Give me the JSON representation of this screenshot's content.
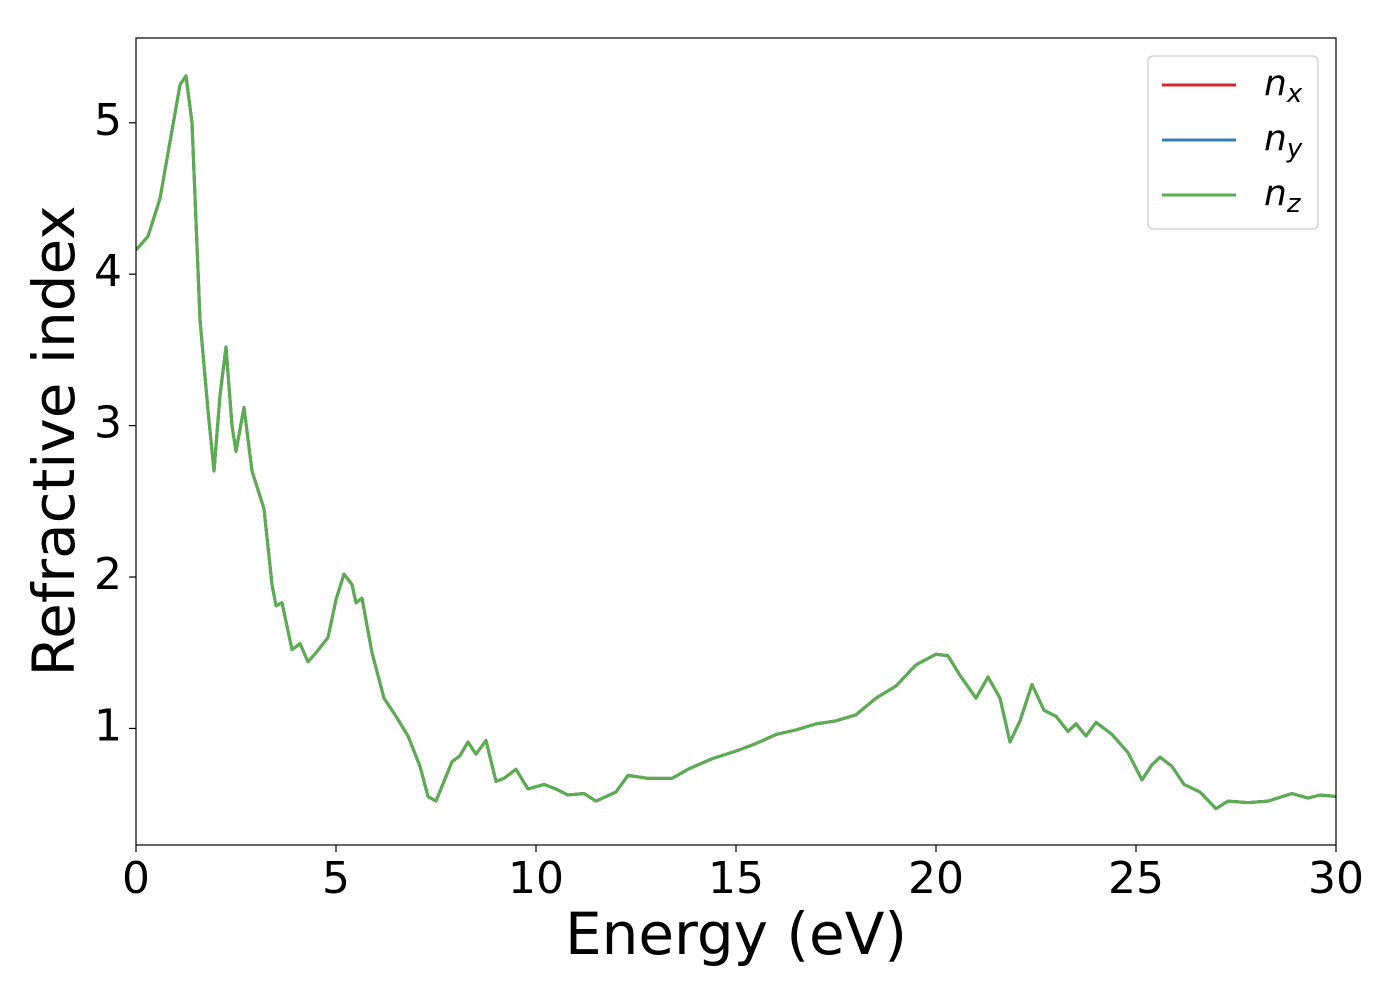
{
  "chart_data": {
    "type": "line",
    "xlabel": "Energy (eV)",
    "ylabel": "Refractive index",
    "x": [
      0,
      0.3,
      0.6,
      0.9,
      1.1,
      1.25,
      1.4,
      1.6,
      1.8,
      1.95,
      2.1,
      2.25,
      2.4,
      2.5,
      2.7,
      2.9,
      3.2,
      3.4,
      3.5,
      3.65,
      3.9,
      4.1,
      4.3,
      4.5,
      4.8,
      5.0,
      5.2,
      5.4,
      5.5,
      5.65,
      5.9,
      6.2,
      6.5,
      6.8,
      7.1,
      7.3,
      7.5,
      7.7,
      7.9,
      8.1,
      8.3,
      8.5,
      8.75,
      9.0,
      9.2,
      9.5,
      9.8,
      10.2,
      10.5,
      10.8,
      11.2,
      11.5,
      12.0,
      12.3,
      12.8,
      13.4,
      13.8,
      14.4,
      15.0,
      15.5,
      16.0,
      16.5,
      17.0,
      17.5,
      18.0,
      18.5,
      19.0,
      19.5,
      20.0,
      20.3,
      20.6,
      21.0,
      21.3,
      21.6,
      21.85,
      22.1,
      22.4,
      22.7,
      23.0,
      23.3,
      23.5,
      23.75,
      24.0,
      24.4,
      24.8,
      25.15,
      25.4,
      25.6,
      25.9,
      26.2,
      26.6,
      27.0,
      27.3,
      27.8,
      28.3,
      28.9,
      29.3,
      29.6,
      30.0
    ],
    "series": [
      {
        "name": "nx",
        "color": "#d62728",
        "values": [
          4.16,
          4.25,
          4.5,
          4.95,
          5.25,
          5.31,
          5.0,
          3.7,
          3.1,
          2.7,
          3.2,
          3.52,
          3.0,
          2.83,
          3.12,
          2.7,
          2.45,
          1.95,
          1.81,
          1.83,
          1.52,
          1.56,
          1.44,
          1.5,
          1.6,
          1.85,
          2.02,
          1.95,
          1.83,
          1.86,
          1.5,
          1.2,
          1.08,
          0.95,
          0.75,
          0.55,
          0.52,
          0.65,
          0.78,
          0.82,
          0.91,
          0.83,
          0.92,
          0.65,
          0.67,
          0.73,
          0.6,
          0.63,
          0.6,
          0.56,
          0.57,
          0.52,
          0.58,
          0.69,
          0.67,
          0.67,
          0.73,
          0.8,
          0.85,
          0.9,
          0.96,
          0.99,
          1.03,
          1.05,
          1.09,
          1.2,
          1.28,
          1.42,
          1.49,
          1.48,
          1.35,
          1.2,
          1.34,
          1.2,
          0.91,
          1.05,
          1.29,
          1.12,
          1.08,
          0.98,
          1.03,
          0.95,
          1.04,
          0.96,
          0.84,
          0.66,
          0.76,
          0.81,
          0.75,
          0.63,
          0.58,
          0.47,
          0.52,
          0.51,
          0.52,
          0.57,
          0.54,
          0.56,
          0.55
        ]
      },
      {
        "name": "ny",
        "color": "#377eb8",
        "values": [
          4.16,
          4.25,
          4.5,
          4.95,
          5.25,
          5.31,
          5.0,
          3.7,
          3.1,
          2.7,
          3.2,
          3.52,
          3.0,
          2.83,
          3.12,
          2.7,
          2.45,
          1.95,
          1.81,
          1.83,
          1.52,
          1.56,
          1.44,
          1.5,
          1.6,
          1.85,
          2.02,
          1.95,
          1.83,
          1.86,
          1.5,
          1.2,
          1.08,
          0.95,
          0.75,
          0.55,
          0.52,
          0.65,
          0.78,
          0.82,
          0.91,
          0.83,
          0.92,
          0.65,
          0.67,
          0.73,
          0.6,
          0.63,
          0.6,
          0.56,
          0.57,
          0.52,
          0.58,
          0.69,
          0.67,
          0.67,
          0.73,
          0.8,
          0.85,
          0.9,
          0.96,
          0.99,
          1.03,
          1.05,
          1.09,
          1.2,
          1.28,
          1.42,
          1.49,
          1.48,
          1.35,
          1.2,
          1.34,
          1.2,
          0.91,
          1.05,
          1.29,
          1.12,
          1.08,
          0.98,
          1.03,
          0.95,
          1.04,
          0.96,
          0.84,
          0.66,
          0.76,
          0.81,
          0.75,
          0.63,
          0.58,
          0.47,
          0.52,
          0.51,
          0.52,
          0.57,
          0.54,
          0.56,
          0.55
        ]
      },
      {
        "name": "nz",
        "color": "#5aae4f",
        "values": [
          4.16,
          4.25,
          4.5,
          4.95,
          5.25,
          5.31,
          5.0,
          3.7,
          3.1,
          2.7,
          3.2,
          3.52,
          3.0,
          2.83,
          3.12,
          2.7,
          2.45,
          1.95,
          1.81,
          1.83,
          1.52,
          1.56,
          1.44,
          1.5,
          1.6,
          1.85,
          2.02,
          1.95,
          1.83,
          1.86,
          1.5,
          1.2,
          1.08,
          0.95,
          0.75,
          0.55,
          0.52,
          0.65,
          0.78,
          0.82,
          0.91,
          0.83,
          0.92,
          0.65,
          0.67,
          0.73,
          0.6,
          0.63,
          0.6,
          0.56,
          0.57,
          0.52,
          0.58,
          0.69,
          0.67,
          0.67,
          0.73,
          0.8,
          0.85,
          0.9,
          0.96,
          0.99,
          1.03,
          1.05,
          1.09,
          1.2,
          1.28,
          1.42,
          1.49,
          1.48,
          1.35,
          1.2,
          1.34,
          1.2,
          0.91,
          1.05,
          1.29,
          1.12,
          1.08,
          0.98,
          1.03,
          0.95,
          1.04,
          0.96,
          0.84,
          0.66,
          0.76,
          0.81,
          0.75,
          0.63,
          0.58,
          0.47,
          0.52,
          0.51,
          0.52,
          0.57,
          0.54,
          0.56,
          0.55
        ]
      }
    ],
    "xlim": [
      0,
      30
    ],
    "xticks": [
      0,
      5,
      10,
      15,
      20,
      25,
      30
    ],
    "ylim": [
      0.23,
      5.56
    ],
    "yticks": [
      1,
      2,
      3,
      4,
      5
    ],
    "grid": false,
    "legend": "upper right"
  }
}
